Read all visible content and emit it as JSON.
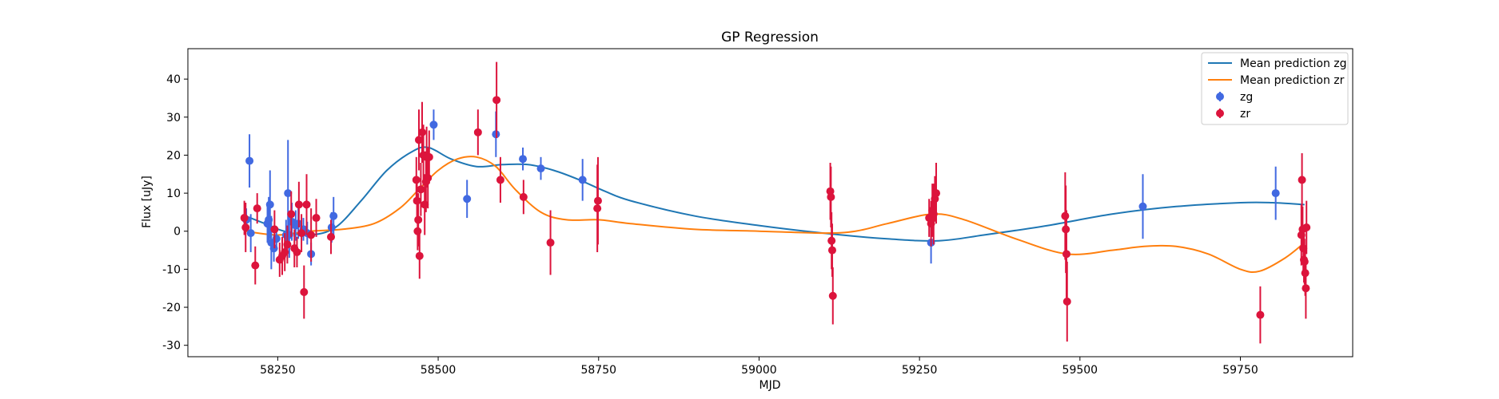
{
  "chart_data": {
    "type": "scatter",
    "title": "GP Regression",
    "xlabel": "MJD",
    "ylabel": "Flux [uJy]",
    "xlim": [
      58110,
      59925
    ],
    "ylim": [
      -33,
      48
    ],
    "xticks": [
      58250,
      58500,
      58750,
      59000,
      59250,
      59500,
      59750
    ],
    "yticks": [
      -30,
      -20,
      -10,
      0,
      10,
      20,
      30,
      40
    ],
    "grid": false,
    "legend_position": "top-right",
    "legend": [
      "Mean prediction zg",
      "Mean prediction zr",
      "zg",
      "zr"
    ],
    "colors": {
      "zg_line": "#1f77b4",
      "zr_line": "#ff7f0e",
      "zg_points": "#4169e1",
      "zr_points": "#dc143c"
    },
    "lines": [
      {
        "name": "Mean prediction zg",
        "x": [
          58200,
          58230,
          58260,
          58300,
          58340,
          58380,
          58420,
          58460,
          58485,
          58520,
          58560,
          58600,
          58640,
          58680,
          58720,
          58760,
          58800,
          58900,
          59000,
          59100,
          59200,
          59280,
          59350,
          59450,
          59550,
          59650,
          59750,
          59800,
          59850
        ],
        "y": [
          4,
          2,
          0,
          -1,
          1,
          8,
          16,
          21,
          22,
          19,
          17,
          17.5,
          17.5,
          16,
          13.5,
          10.5,
          8,
          4,
          1.5,
          -0.5,
          -2,
          -2.5,
          -1,
          1.5,
          4.5,
          6.5,
          7.5,
          7.5,
          7
        ]
      },
      {
        "name": "Mean prediction zr",
        "x": [
          58200,
          58250,
          58300,
          58350,
          58400,
          58440,
          58470,
          58500,
          58530,
          58560,
          58590,
          58620,
          58660,
          58700,
          58750,
          58800,
          58900,
          59000,
          59100,
          59150,
          59200,
          59270,
          59320,
          59400,
          59480,
          59550,
          59600,
          59650,
          59700,
          59750,
          59780,
          59820,
          59850
        ],
        "y": [
          0,
          -1,
          0,
          0.5,
          2,
          6,
          11,
          16,
          19,
          19.5,
          17,
          11,
          5,
          3,
          3,
          2,
          0.5,
          0,
          -0.5,
          0,
          2,
          4.5,
          3,
          -2,
          -6,
          -5,
          -4,
          -4,
          -6,
          -10,
          -10.5,
          -7,
          -3
        ]
      }
    ],
    "series": [
      {
        "name": "zg",
        "points": [
          [
            58201,
            3,
            3
          ],
          [
            58206,
            18.5,
            7
          ],
          [
            58208,
            -0.5,
            5
          ],
          [
            58234,
            2,
            5
          ],
          [
            58236,
            3,
            6
          ],
          [
            58238,
            7,
            9
          ],
          [
            58240,
            -3,
            7
          ],
          [
            58244,
            -4.5,
            3.5
          ],
          [
            58248,
            -2,
            3
          ],
          [
            58263,
            -1,
            4
          ],
          [
            58266,
            10,
            14
          ],
          [
            58268,
            -1,
            6
          ],
          [
            58272,
            2.5,
            5
          ],
          [
            58278,
            1.5,
            4
          ],
          [
            58282,
            2,
            4
          ],
          [
            58290,
            0.5,
            3
          ],
          [
            58296,
            -0.5,
            3
          ],
          [
            58302,
            -6,
            3
          ],
          [
            58334,
            1,
            4
          ],
          [
            58337,
            4,
            5
          ],
          [
            58493,
            28,
            4
          ],
          [
            58545,
            8.5,
            5
          ],
          [
            58590,
            25.5,
            6
          ],
          [
            58632,
            19,
            3
          ],
          [
            58660,
            16.5,
            3
          ],
          [
            58725,
            13.5,
            5.5
          ],
          [
            59268,
            -3,
            5.5
          ],
          [
            59598,
            6.5,
            8.5
          ],
          [
            59805,
            10,
            7
          ]
        ]
      },
      {
        "name": "zr",
        "points": [
          [
            58198,
            3.5,
            4.5
          ],
          [
            58200,
            1,
            6.5
          ],
          [
            58215,
            -9,
            5
          ],
          [
            58218,
            6,
            4
          ],
          [
            58245,
            0.5,
            5
          ],
          [
            58253,
            -7.5,
            4.5
          ],
          [
            58257,
            -6.5,
            5
          ],
          [
            58261,
            -5.5,
            5
          ],
          [
            58265,
            -3.5,
            5
          ],
          [
            58271,
            4.5,
            6
          ],
          [
            58276,
            -4.5,
            5
          ],
          [
            58280,
            -5.5,
            4
          ],
          [
            58283,
            7,
            6
          ],
          [
            58287,
            -0.5,
            5
          ],
          [
            58291,
            -16,
            7
          ],
          [
            58295,
            7,
            8
          ],
          [
            58302,
            -1,
            7
          ],
          [
            58310,
            3.5,
            5
          ],
          [
            58333,
            -1.5,
            4.5
          ],
          [
            58466,
            13.5,
            6
          ],
          [
            58467,
            8,
            6
          ],
          [
            58468,
            0,
            5
          ],
          [
            58469,
            3,
            7
          ],
          [
            58470,
            24,
            8
          ],
          [
            58471,
            -6.5,
            6
          ],
          [
            58473,
            11,
            7
          ],
          [
            58475,
            26,
            8
          ],
          [
            58477,
            20,
            8
          ],
          [
            58479,
            7,
            8
          ],
          [
            58481,
            13,
            8
          ],
          [
            58482,
            19.5,
            8
          ],
          [
            58484,
            14,
            8
          ],
          [
            58486,
            19.5,
            7
          ],
          [
            58562,
            26,
            6
          ],
          [
            58591,
            34.5,
            10
          ],
          [
            58597,
            13.5,
            6
          ],
          [
            58633,
            9,
            4.5
          ],
          [
            58675,
            -3,
            8.5
          ],
          [
            58748,
            6,
            11.5
          ],
          [
            58749,
            8,
            11.5
          ],
          [
            59111,
            10.5,
            7.5
          ],
          [
            59112,
            9,
            8
          ],
          [
            59113,
            -2.5,
            7.5
          ],
          [
            59114,
            -5,
            7
          ],
          [
            59115,
            -17,
            7.5
          ],
          [
            59265,
            3.5,
            5
          ],
          [
            59268,
            2,
            6
          ],
          [
            59270,
            5.5,
            7
          ],
          [
            59272,
            4.5,
            8
          ],
          [
            59274,
            8.5,
            6
          ],
          [
            59276,
            10,
            8
          ],
          [
            59477,
            4,
            11.5
          ],
          [
            59478,
            0.5,
            11.5
          ],
          [
            59479,
            -6,
            11.5
          ],
          [
            59480,
            -18.5,
            10.5
          ],
          [
            59781,
            -22,
            7.5
          ],
          [
            59845,
            -1,
            8
          ],
          [
            59846,
            13.5,
            7
          ],
          [
            59847,
            0.5,
            6
          ],
          [
            59848,
            -4.5,
            6
          ],
          [
            59849,
            -7.5,
            6
          ],
          [
            59850,
            -8,
            6
          ],
          [
            59851,
            -11,
            6
          ],
          [
            59852,
            -15,
            8
          ],
          [
            59853,
            1,
            7
          ]
        ]
      }
    ]
  }
}
